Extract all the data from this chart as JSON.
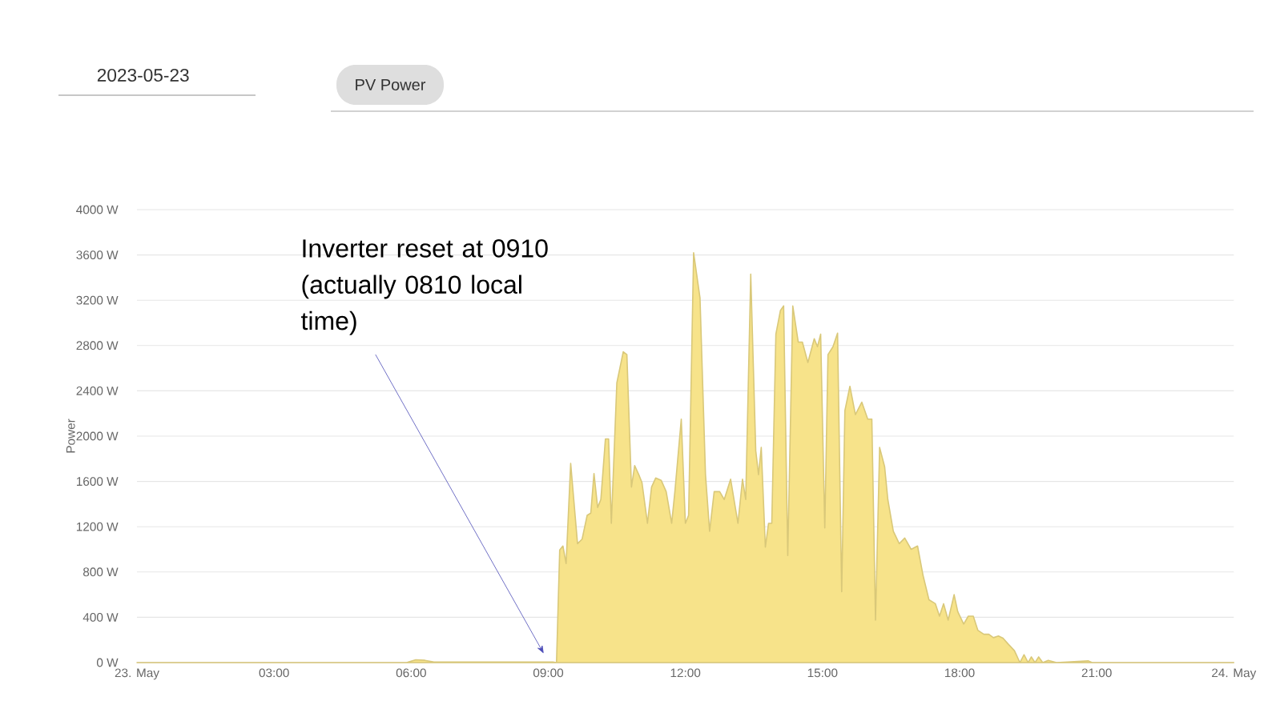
{
  "chart_data": {
    "type": "area",
    "title": "PV Power",
    "subtitle": "2023-05-23",
    "ylabel": "Power",
    "x": [
      0,
      5.9,
      6.1,
      6.3,
      6.5,
      9.1,
      9.18,
      9.25,
      9.32,
      9.39,
      9.49,
      9.64,
      9.74,
      9.85,
      9.93,
      10.0,
      10.08,
      10.15,
      10.25,
      10.32,
      10.38,
      10.5,
      10.64,
      10.72,
      10.82,
      10.89,
      10.98,
      11.05,
      11.17,
      11.26,
      11.35,
      11.47,
      11.58,
      11.7,
      11.77,
      11.91,
      12.0,
      12.07,
      12.18,
      12.32,
      12.44,
      12.53,
      12.63,
      12.75,
      12.85,
      12.99,
      13.15,
      13.25,
      13.32,
      13.43,
      13.54,
      13.6,
      13.66,
      13.75,
      13.82,
      13.89,
      13.98,
      14.08,
      14.15,
      14.24,
      14.35,
      14.47,
      14.56,
      14.68,
      14.82,
      14.89,
      14.96,
      15.05,
      15.12,
      15.23,
      15.33,
      15.42,
      15.49,
      15.6,
      15.72,
      15.86,
      15.99,
      16.08,
      16.16,
      16.25,
      16.36,
      16.43,
      16.55,
      16.68,
      16.8,
      16.94,
      17.08,
      17.2,
      17.33,
      17.47,
      17.56,
      17.65,
      17.75,
      17.88,
      17.96,
      18.09,
      18.19,
      18.3,
      18.4,
      18.53,
      18.64,
      18.74,
      18.85,
      18.95,
      19.06,
      19.2,
      19.32,
      19.41,
      19.5,
      19.57,
      19.65,
      19.73,
      19.82,
      19.94,
      20.12,
      20.82,
      20.9,
      24
    ],
    "values": [
      0,
      0,
      25,
      20,
      5,
      5,
      0,
      995,
      1030,
      875,
      1760,
      1050,
      1090,
      1300,
      1320,
      1670,
      1370,
      1440,
      1975,
      1975,
      1230,
      2470,
      2745,
      2720,
      1550,
      1740,
      1660,
      1590,
      1230,
      1550,
      1630,
      1610,
      1510,
      1230,
      1510,
      2150,
      1230,
      1300,
      3620,
      3220,
      1660,
      1160,
      1510,
      1510,
      1440,
      1620,
      1230,
      1620,
      1440,
      3430,
      1870,
      1660,
      1900,
      1020,
      1230,
      1230,
      2900,
      3110,
      3150,
      945,
      3150,
      2830,
      2830,
      2650,
      2860,
      2790,
      2900,
      1190,
      2720,
      2790,
      2910,
      625,
      2225,
      2440,
      2190,
      2300,
      2150,
      2150,
      375,
      1900,
      1730,
      1440,
      1160,
      1050,
      1100,
      1000,
      1030,
      770,
      555,
      520,
      410,
      520,
      375,
      600,
      450,
      340,
      410,
      410,
      285,
      250,
      250,
      220,
      235,
      215,
      165,
      105,
      0,
      70,
      0,
      50,
      0,
      50,
      0,
      20,
      0,
      15,
      0,
      0
    ],
    "color": "#f7e38a",
    "xlim": [
      0,
      24
    ],
    "xticks": [
      {
        "value": 0,
        "label": "23. May"
      },
      {
        "value": 3,
        "label": "03:00"
      },
      {
        "value": 6,
        "label": "06:00"
      },
      {
        "value": 9,
        "label": "09:00"
      },
      {
        "value": 12,
        "label": "12:00"
      },
      {
        "value": 15,
        "label": "15:00"
      },
      {
        "value": 18,
        "label": "18:00"
      },
      {
        "value": 21,
        "label": "21:00"
      },
      {
        "value": 24,
        "label": "24. May"
      }
    ],
    "ylim": [
      0,
      4000
    ],
    "yticks": [
      {
        "value": 0,
        "label": "0 W"
      },
      {
        "value": 400,
        "label": "400 W"
      },
      {
        "value": 800,
        "label": "800 W"
      },
      {
        "value": 1200,
        "label": "1200 W"
      },
      {
        "value": 1600,
        "label": "1600 W"
      },
      {
        "value": 2000,
        "label": "2000 W"
      },
      {
        "value": 2400,
        "label": "2400 W"
      },
      {
        "value": 2800,
        "label": "2800 W"
      },
      {
        "value": 3200,
        "label": "3200 W"
      },
      {
        "value": 3600,
        "label": "3600 W"
      },
      {
        "value": 4000,
        "label": "4000 W"
      }
    ],
    "grid": "y",
    "annotations": [
      "Inverter reset at 0910 (actually 0810 local time)"
    ]
  }
}
